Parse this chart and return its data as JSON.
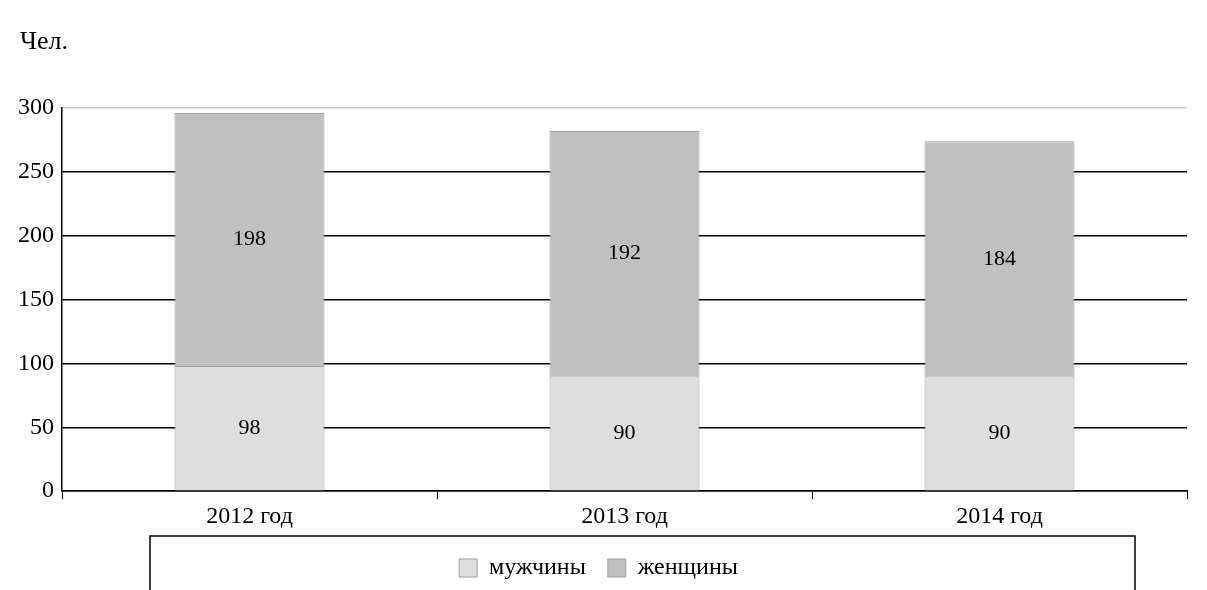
{
  "chart_data": {
    "type": "bar",
    "ylabel": "Чел.",
    "categories": [
      "2012 год",
      "2013 год",
      "2014 год"
    ],
    "stacked": true,
    "data_labels": true,
    "ylim": [
      0,
      300
    ],
    "yticks": [
      0,
      50,
      100,
      150,
      200,
      250,
      300
    ],
    "grid": "y",
    "legend": "bottom",
    "series": [
      {
        "name": "мужчины",
        "color": "#dedede",
        "values": [
          98,
          90,
          90
        ]
      },
      {
        "name": "женщины",
        "color": "#c0c0c0",
        "values": [
          198,
          192,
          184
        ]
      }
    ]
  }
}
